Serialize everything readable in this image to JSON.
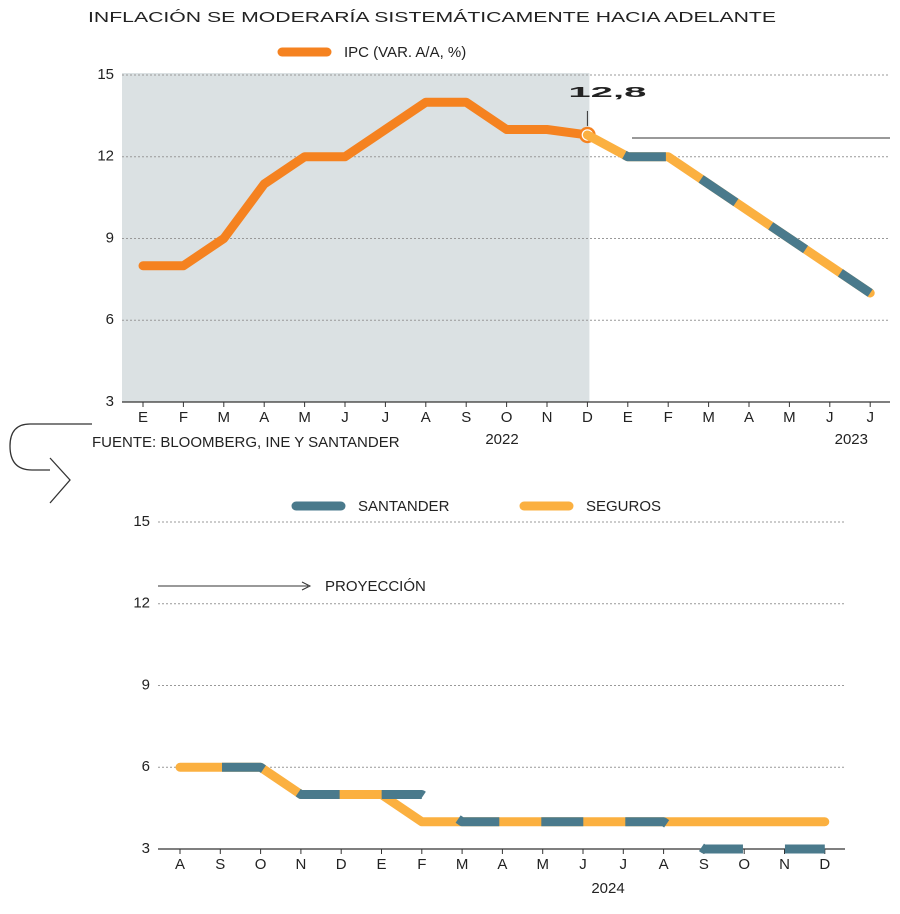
{
  "chart_data": [
    {
      "type": "line",
      "title": "INFLACIÓN SE MODERARÍA SISTEMÁTICAMENTE HACIA ADELANTE",
      "source": "FUENTE: BLOOMBERG, INE Y SANTANDER",
      "categories": [
        "E",
        "F",
        "M",
        "A",
        "M",
        "J",
        "J",
        "A",
        "S",
        "O",
        "N",
        "D",
        "E",
        "F",
        "M",
        "A",
        "M",
        "J",
        "J"
      ],
      "year_labels": [
        "2022",
        "2023"
      ],
      "ylim": [
        3,
        15
      ],
      "yticks": [
        3,
        6,
        9,
        12,
        15
      ],
      "grid": true,
      "series": [
        {
          "name": "IPC (VAR. A/A, %)",
          "color": "#f58220",
          "legend": true,
          "values": [
            8,
            8,
            9,
            11,
            12,
            12,
            13,
            14,
            14,
            13,
            13,
            12.8,
            null,
            null,
            null,
            null,
            null,
            null,
            null
          ],
          "value_labels": [
            null,
            null,
            null,
            null,
            null,
            null,
            null,
            null,
            null,
            null,
            null,
            "12,8",
            null,
            null,
            null,
            null,
            null,
            null,
            null
          ]
        },
        {
          "name": "SEGUROS",
          "color": "#fbb040",
          "legend": false,
          "values": [
            null,
            null,
            null,
            null,
            null,
            null,
            null,
            null,
            null,
            null,
            null,
            12.8,
            12,
            12,
            11,
            10,
            9,
            8,
            7
          ]
        },
        {
          "name": "SANTANDER",
          "color": "#4a7a8c",
          "legend": false,
          "dashed": true,
          "values": [
            null,
            null,
            null,
            null,
            null,
            null,
            null,
            null,
            null,
            null,
            null,
            12.8,
            12,
            12,
            11,
            10,
            9,
            8,
            7
          ]
        }
      ]
    },
    {
      "type": "line",
      "annotation": "PROYECCIÓN",
      "categories": [
        "A",
        "S",
        "O",
        "N",
        "D",
        "E",
        "F",
        "M",
        "A",
        "M",
        "J",
        "J",
        "A",
        "S",
        "O",
        "N",
        "D"
      ],
      "year_labels": [
        "2024"
      ],
      "ylim": [
        3,
        15
      ],
      "yticks": [
        3,
        6,
        9,
        12,
        15
      ],
      "grid": true,
      "series": [
        {
          "name": "SEGUROS",
          "color": "#fbb040",
          "legend": true,
          "values": [
            6,
            6,
            6,
            5,
            5,
            5,
            4,
            4,
            4,
            4,
            4,
            4,
            4,
            4,
            4,
            4,
            4
          ]
        },
        {
          "name": "SANTANDER",
          "color": "#4a7a8c",
          "legend": true,
          "dashed": true,
          "values": [
            6,
            6,
            6,
            5,
            5,
            5,
            5,
            4,
            4,
            4,
            4,
            4,
            4,
            3,
            3,
            3,
            3
          ]
        }
      ]
    }
  ]
}
